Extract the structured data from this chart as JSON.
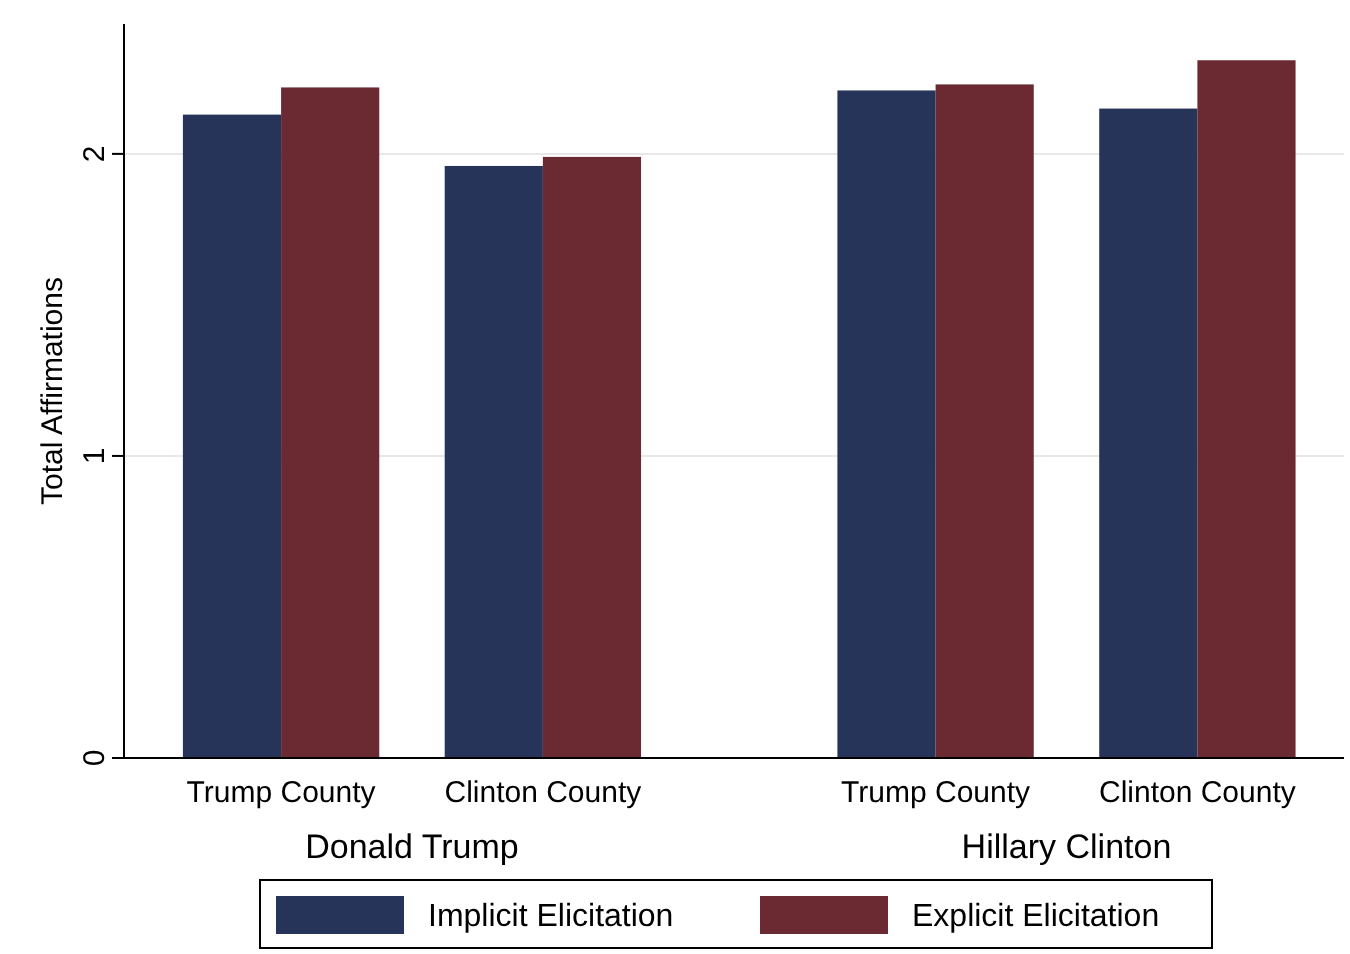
{
  "chart_data": {
    "type": "bar",
    "ylabel": "Total Affirmations",
    "categories": [
      "Trump County",
      "Clinton County",
      null,
      "Trump County",
      "Clinton County"
    ],
    "series": [
      {
        "name": "Implicit Elicitation",
        "color": "#26345a",
        "values": [
          2.13,
          1.96,
          null,
          2.21,
          2.15
        ]
      },
      {
        "name": "Explicit Elicitation",
        "color": "#6b2a32",
        "values": [
          2.22,
          1.99,
          null,
          2.23,
          2.31
        ]
      }
    ],
    "annotations": [
      "Donald Trump",
      "Hillary Clinton"
    ],
    "ylim": [
      0,
      2.43
    ],
    "yticks": [
      0,
      1,
      2
    ],
    "grid": "y",
    "legend": "bottom"
  }
}
